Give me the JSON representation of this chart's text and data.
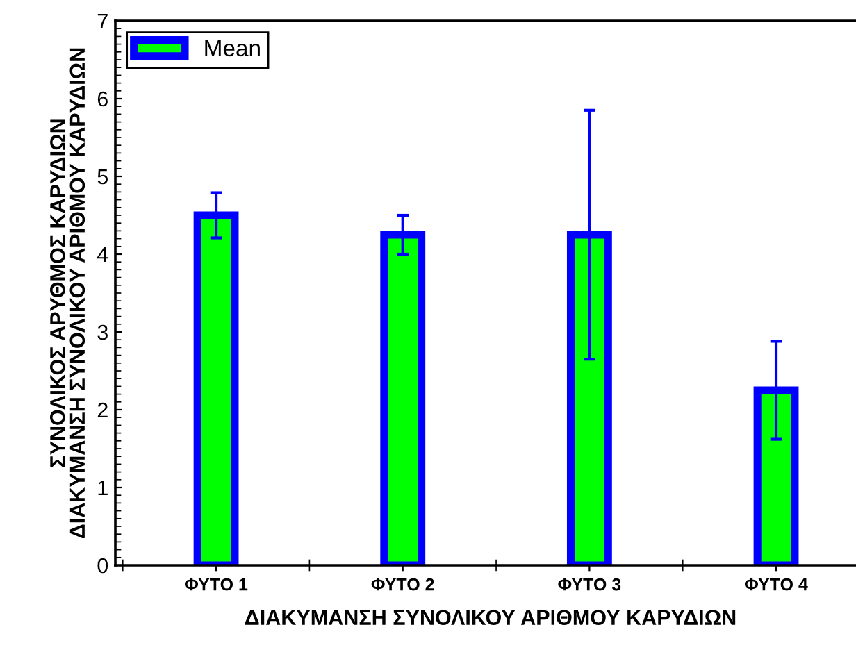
{
  "chart_data": {
    "type": "bar",
    "xlabel": "ΔΙΑΚΥΜΑΝΣΗ ΣΥΝΟΛΙΚΟΥ ΑΡΙΘΜΟΥ ΚΑΡΥΔΙΩΝ",
    "ylabel": "ΣΥΝΟΛΙΚΟΣ ΑΡΥΘΜΟΣ ΚΑΡΥΔΙΩΝ\nΔΙΑΚΥΜΑΝΣΗ ΣΥΝΟΛΙΚΟΥ ΑΡΙΘΜΟΥ ΚΑΡΥΔΙΩΝ",
    "categories": [
      "ΦΥΤΟ 1",
      "ΦΥΤΟ 2",
      "ΦΥΤΟ 3",
      "ΦΥΤΟ 4"
    ],
    "series": [
      {
        "name": "Mean",
        "color": "#00ff00",
        "values": [
          4.5,
          4.25,
          4.25,
          2.25
        ],
        "errors": [
          0.29,
          0.25,
          1.6,
          0.63
        ]
      }
    ],
    "ylim": [
      0,
      7
    ],
    "yticks": [
      0,
      1,
      2,
      3,
      4,
      5,
      6,
      7
    ],
    "grid": false,
    "legend": "top left"
  }
}
